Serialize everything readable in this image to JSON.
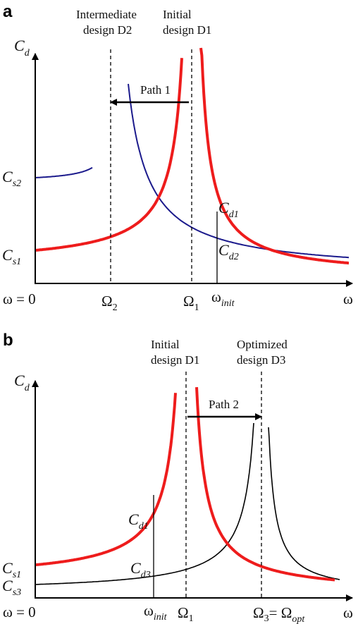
{
  "colors": {
    "red": "#ee1c1c",
    "navy": "#1b1a8c",
    "black": "#000000"
  },
  "panel_a": {
    "label": "a",
    "y_axis": {
      "base": "C",
      "sub": "d"
    },
    "x_axis": "ω",
    "omega_zero": "ω = 0",
    "design_intermediate": [
      "Intermediate",
      "design D2"
    ],
    "design_initial": [
      "Initial",
      "design D1"
    ],
    "path": "Path 1",
    "cs2": {
      "base": "C",
      "sub": "s2"
    },
    "cs1": {
      "base": "C",
      "sub": "s1"
    },
    "cd1": {
      "base": "C",
      "sub": "d1"
    },
    "cd2": {
      "base": "C",
      "sub": "d2"
    },
    "omega2": {
      "base": "Ω",
      "sub": "2"
    },
    "omega1": {
      "base": "Ω",
      "sub": "1"
    },
    "omega_init": {
      "base": "ω",
      "sub": "init"
    }
  },
  "panel_b": {
    "label": "b",
    "y_axis": {
      "base": "C",
      "sub": "d"
    },
    "x_axis": "ω",
    "omega_zero": "ω = 0",
    "design_initial": [
      "Initial",
      "design D1"
    ],
    "design_optimized": [
      "Optimized",
      "design D3"
    ],
    "path": "Path 2",
    "cs1": {
      "base": "C",
      "sub": "s1"
    },
    "cs3": {
      "base": "C",
      "sub": "s3"
    },
    "cd1": {
      "base": "C",
      "sub": "d1"
    },
    "cd3": {
      "base": "C",
      "sub": "d3"
    },
    "omega_init": {
      "base": "ω",
      "sub": "init"
    },
    "omega1": {
      "base": "Ω",
      "sub": "1"
    },
    "omega3": {
      "base": "Ω",
      "sub": "3"
    },
    "omega3_eq": "= Ω",
    "omega_opt_sub": "opt"
  }
}
